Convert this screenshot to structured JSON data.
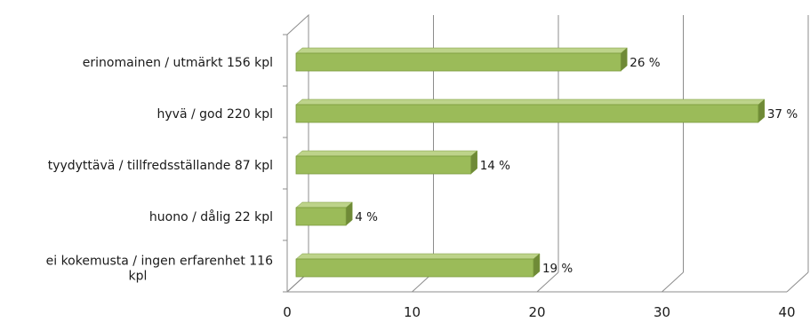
{
  "chart_data": {
    "type": "bar",
    "orientation": "horizontal",
    "style": "3d",
    "categories": [
      "erinomainen / utmärkt 156 kpl",
      "hyvä / god 220 kpl",
      "tyydyttävä / tillfredsställande 87 kpl",
      "huono / dålig 22 kpl",
      [
        "ei kokemusta / ingen erfarenhet 116",
        "kpl"
      ]
    ],
    "values": [
      26,
      37,
      14,
      4,
      19
    ],
    "value_labels": [
      "26 %",
      "37 %",
      "14 %",
      "4 %",
      "19 %"
    ],
    "x_ticks": [
      "0",
      "10",
      "20",
      "30",
      "40"
    ],
    "xlim": [
      0,
      40
    ],
    "grid": "vertical",
    "legend": "none",
    "colors": {
      "bar_front": "#9bbb59",
      "bar_top": "#bdd38a",
      "bar_side": "#6f8a37",
      "bar_edge": "#7a9a3c",
      "grid": "#8c8c8c",
      "axis": "#8c8c8c"
    }
  }
}
